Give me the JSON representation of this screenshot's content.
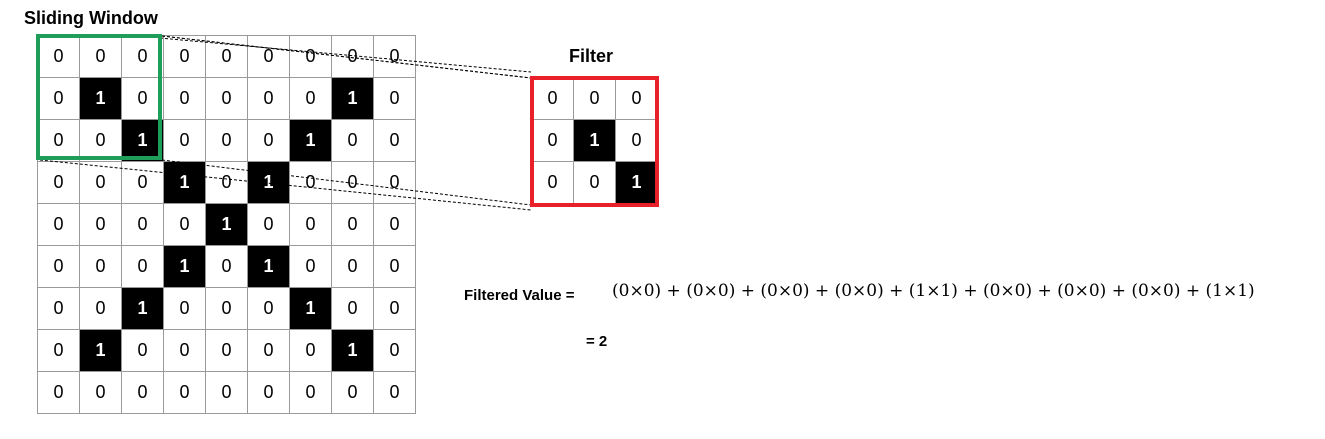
{
  "sliding_window_title": "Sliding Window",
  "filter_title": "Filter",
  "input_grid": [
    [
      "0",
      "0",
      "0",
      "0",
      "0",
      "0",
      "0",
      "0",
      "0"
    ],
    [
      "0",
      "1",
      "0",
      "0",
      "0",
      "0",
      "0",
      "1",
      "0"
    ],
    [
      "0",
      "0",
      "1",
      "0",
      "0",
      "0",
      "1",
      "0",
      "0"
    ],
    [
      "0",
      "0",
      "0",
      "1",
      "0",
      "1",
      "0",
      "0",
      "0"
    ],
    [
      "0",
      "0",
      "0",
      "0",
      "1",
      "0",
      "0",
      "0",
      "0"
    ],
    [
      "0",
      "0",
      "0",
      "1",
      "0",
      "1",
      "0",
      "0",
      "0"
    ],
    [
      "0",
      "0",
      "1",
      "0",
      "0",
      "0",
      "1",
      "0",
      "0"
    ],
    [
      "0",
      "1",
      "0",
      "0",
      "0",
      "0",
      "0",
      "1",
      "0"
    ],
    [
      "0",
      "0",
      "0",
      "0",
      "0",
      "0",
      "0",
      "0",
      "0"
    ]
  ],
  "filter_grid": [
    [
      "0",
      "0",
      "0"
    ],
    [
      "0",
      "1",
      "0"
    ],
    [
      "0",
      "0",
      "1"
    ]
  ],
  "filtered_value_label": "Filtered Value =",
  "equation": "(0×0) + (0×0) + (0×0) + (0×0) + (1×1) + (0×0) + (0×0) + (0×0) + (1×1)",
  "result": "= 2",
  "colors": {
    "window_border": "#1f9e5a",
    "filter_border": "#e8202a",
    "active_cell": "#000000"
  }
}
